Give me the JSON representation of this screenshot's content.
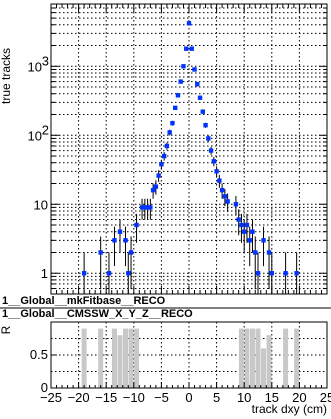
{
  "chart_data": [
    {
      "type": "scatter",
      "xlabel": "track dxy (cm)",
      "ylabel": "true tracks",
      "yscale": "log",
      "xlim": [
        -25,
        25
      ],
      "ylim": [
        0.5,
        8000
      ],
      "x_ticks": [
        "−25",
        "−20",
        "−15",
        "−10",
        "−5",
        "0",
        "5",
        "10",
        "15",
        "20",
        "25"
      ],
      "y_ticks": [
        {
          "value": 1,
          "base": "1",
          "exp": ""
        },
        {
          "value": 10,
          "base": "10",
          "exp": ""
        },
        {
          "value": 100,
          "base": "10",
          "exp": "2"
        },
        {
          "value": 1000,
          "base": "10",
          "exp": "3"
        }
      ],
      "grid": true,
      "series": [
        {
          "name": "1__Global__mkFitbase__RECO",
          "color": "#0033ff",
          "marker": "square",
          "points": [
            {
              "x": -19.0,
              "y": 1
            },
            {
              "x": -16.0,
              "y": 2
            },
            {
              "x": -14.5,
              "y": 1
            },
            {
              "x": -13.5,
              "y": 3
            },
            {
              "x": -12.5,
              "y": 4
            },
            {
              "x": -11.5,
              "y": 3
            },
            {
              "x": -11.0,
              "y": 1
            },
            {
              "x": -10.5,
              "y": 2
            },
            {
              "x": -9.5,
              "y": 5
            },
            {
              "x": -8.5,
              "y": 9
            },
            {
              "x": -8.0,
              "y": 9
            },
            {
              "x": -7.5,
              "y": 9
            },
            {
              "x": -7.0,
              "y": 9
            },
            {
              "x": -6.5,
              "y": 16
            },
            {
              "x": -6.0,
              "y": 18
            },
            {
              "x": -5.5,
              "y": 26
            },
            {
              "x": -5.0,
              "y": 38
            },
            {
              "x": -4.5,
              "y": 50
            },
            {
              "x": -4.0,
              "y": 70
            },
            {
              "x": -3.5,
              "y": 110
            },
            {
              "x": -3.0,
              "y": 150
            },
            {
              "x": -2.5,
              "y": 250
            },
            {
              "x": -2.0,
              "y": 380
            },
            {
              "x": -1.5,
              "y": 600
            },
            {
              "x": -1.0,
              "y": 1000
            },
            {
              "x": -0.5,
              "y": 1800
            },
            {
              "x": 0.0,
              "y": 4200
            },
            {
              "x": 0.5,
              "y": 1800
            },
            {
              "x": 1.0,
              "y": 900
            },
            {
              "x": 1.5,
              "y": 550
            },
            {
              "x": 2.0,
              "y": 350
            },
            {
              "x": 2.5,
              "y": 220
            },
            {
              "x": 3.0,
              "y": 140
            },
            {
              "x": 3.5,
              "y": 90
            },
            {
              "x": 4.0,
              "y": 60
            },
            {
              "x": 4.5,
              "y": 42
            },
            {
              "x": 5.0,
              "y": 30
            },
            {
              "x": 5.5,
              "y": 22
            },
            {
              "x": 6.0,
              "y": 16
            },
            {
              "x": 6.5,
              "y": 13
            },
            {
              "x": 7.0,
              "y": 11
            },
            {
              "x": 8.5,
              "y": 10
            },
            {
              "x": 9.0,
              "y": 6
            },
            {
              "x": 9.5,
              "y": 5
            },
            {
              "x": 10.0,
              "y": 4
            },
            {
              "x": 10.5,
              "y": 5
            },
            {
              "x": 11.0,
              "y": 3
            },
            {
              "x": 11.5,
              "y": 4
            },
            {
              "x": 12.0,
              "y": 2
            },
            {
              "x": 12.5,
              "y": 1
            },
            {
              "x": 13.5,
              "y": 3
            },
            {
              "x": 14.5,
              "y": 2
            },
            {
              "x": 15.0,
              "y": 1
            },
            {
              "x": 17.5,
              "y": 1
            },
            {
              "x": 19.5,
              "y": 1
            }
          ]
        },
        {
          "name": "1__Global__CMSSW_X_Y_Z__RECO",
          "color": "#000000",
          "marker": "errorbar",
          "points": []
        }
      ]
    },
    {
      "type": "bar",
      "ylabel": "R",
      "xlim": [
        -25,
        25
      ],
      "ylim": [
        0,
        1
      ],
      "y_ticks": [
        "0",
        "0.5"
      ],
      "grid": true,
      "color": "#c8c8c8",
      "bars": [
        {
          "x": -19.0,
          "y": 0.9
        },
        {
          "x": -16.0,
          "y": 0.9
        },
        {
          "x": -13.5,
          "y": 0.9
        },
        {
          "x": -12.5,
          "y": 0.8
        },
        {
          "x": -11.5,
          "y": 0.9
        },
        {
          "x": -10.5,
          "y": 0.9
        },
        {
          "x": -9.5,
          "y": 0.9
        },
        {
          "x": 9.5,
          "y": 0.9
        },
        {
          "x": 10.5,
          "y": 0.9
        },
        {
          "x": 11.5,
          "y": 0.9
        },
        {
          "x": 12.5,
          "y": 0.9
        },
        {
          "x": 13.5,
          "y": 0.6
        },
        {
          "x": 14.5,
          "y": 0.8
        },
        {
          "x": 17.5,
          "y": 0.9
        },
        {
          "x": 19.5,
          "y": 0.9
        }
      ]
    }
  ]
}
